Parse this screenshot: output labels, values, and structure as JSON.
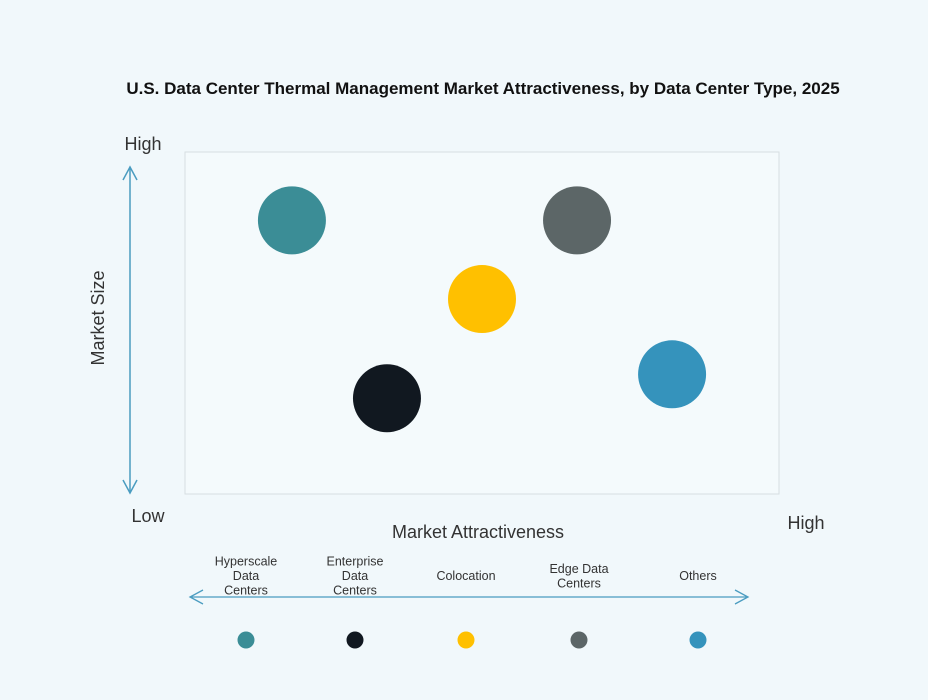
{
  "chart_data": {
    "type": "scatter",
    "title": "U.S. Data Center Thermal Management Market Attractiveness,  by Data Center Type, 2025",
    "xlabel": "Market Attractiveness",
    "ylabel": "Market Size",
    "y_high_label": "High",
    "y_low_label": "Low",
    "x_high_label": "High",
    "xlim": [
      0,
      10
    ],
    "ylim": [
      0,
      10
    ],
    "grid": false,
    "legend_position": "bottom",
    "series": [
      {
        "name": "Hyperscale Data Centers",
        "color": "#3b8d96",
        "x": 1.8,
        "y": 8.0
      },
      {
        "name": "Enterprise Data Centers",
        "color": "#111820",
        "x": 3.4,
        "y": 2.8
      },
      {
        "name": "Colocation",
        "color": "#ffc000",
        "x": 5.0,
        "y": 5.7
      },
      {
        "name": "Edge Data Centers",
        "color": "#5c6667",
        "x": 6.6,
        "y": 8.0
      },
      {
        "name": "Others",
        "color": "#3593bc",
        "x": 8.2,
        "y": 3.5
      }
    ]
  }
}
